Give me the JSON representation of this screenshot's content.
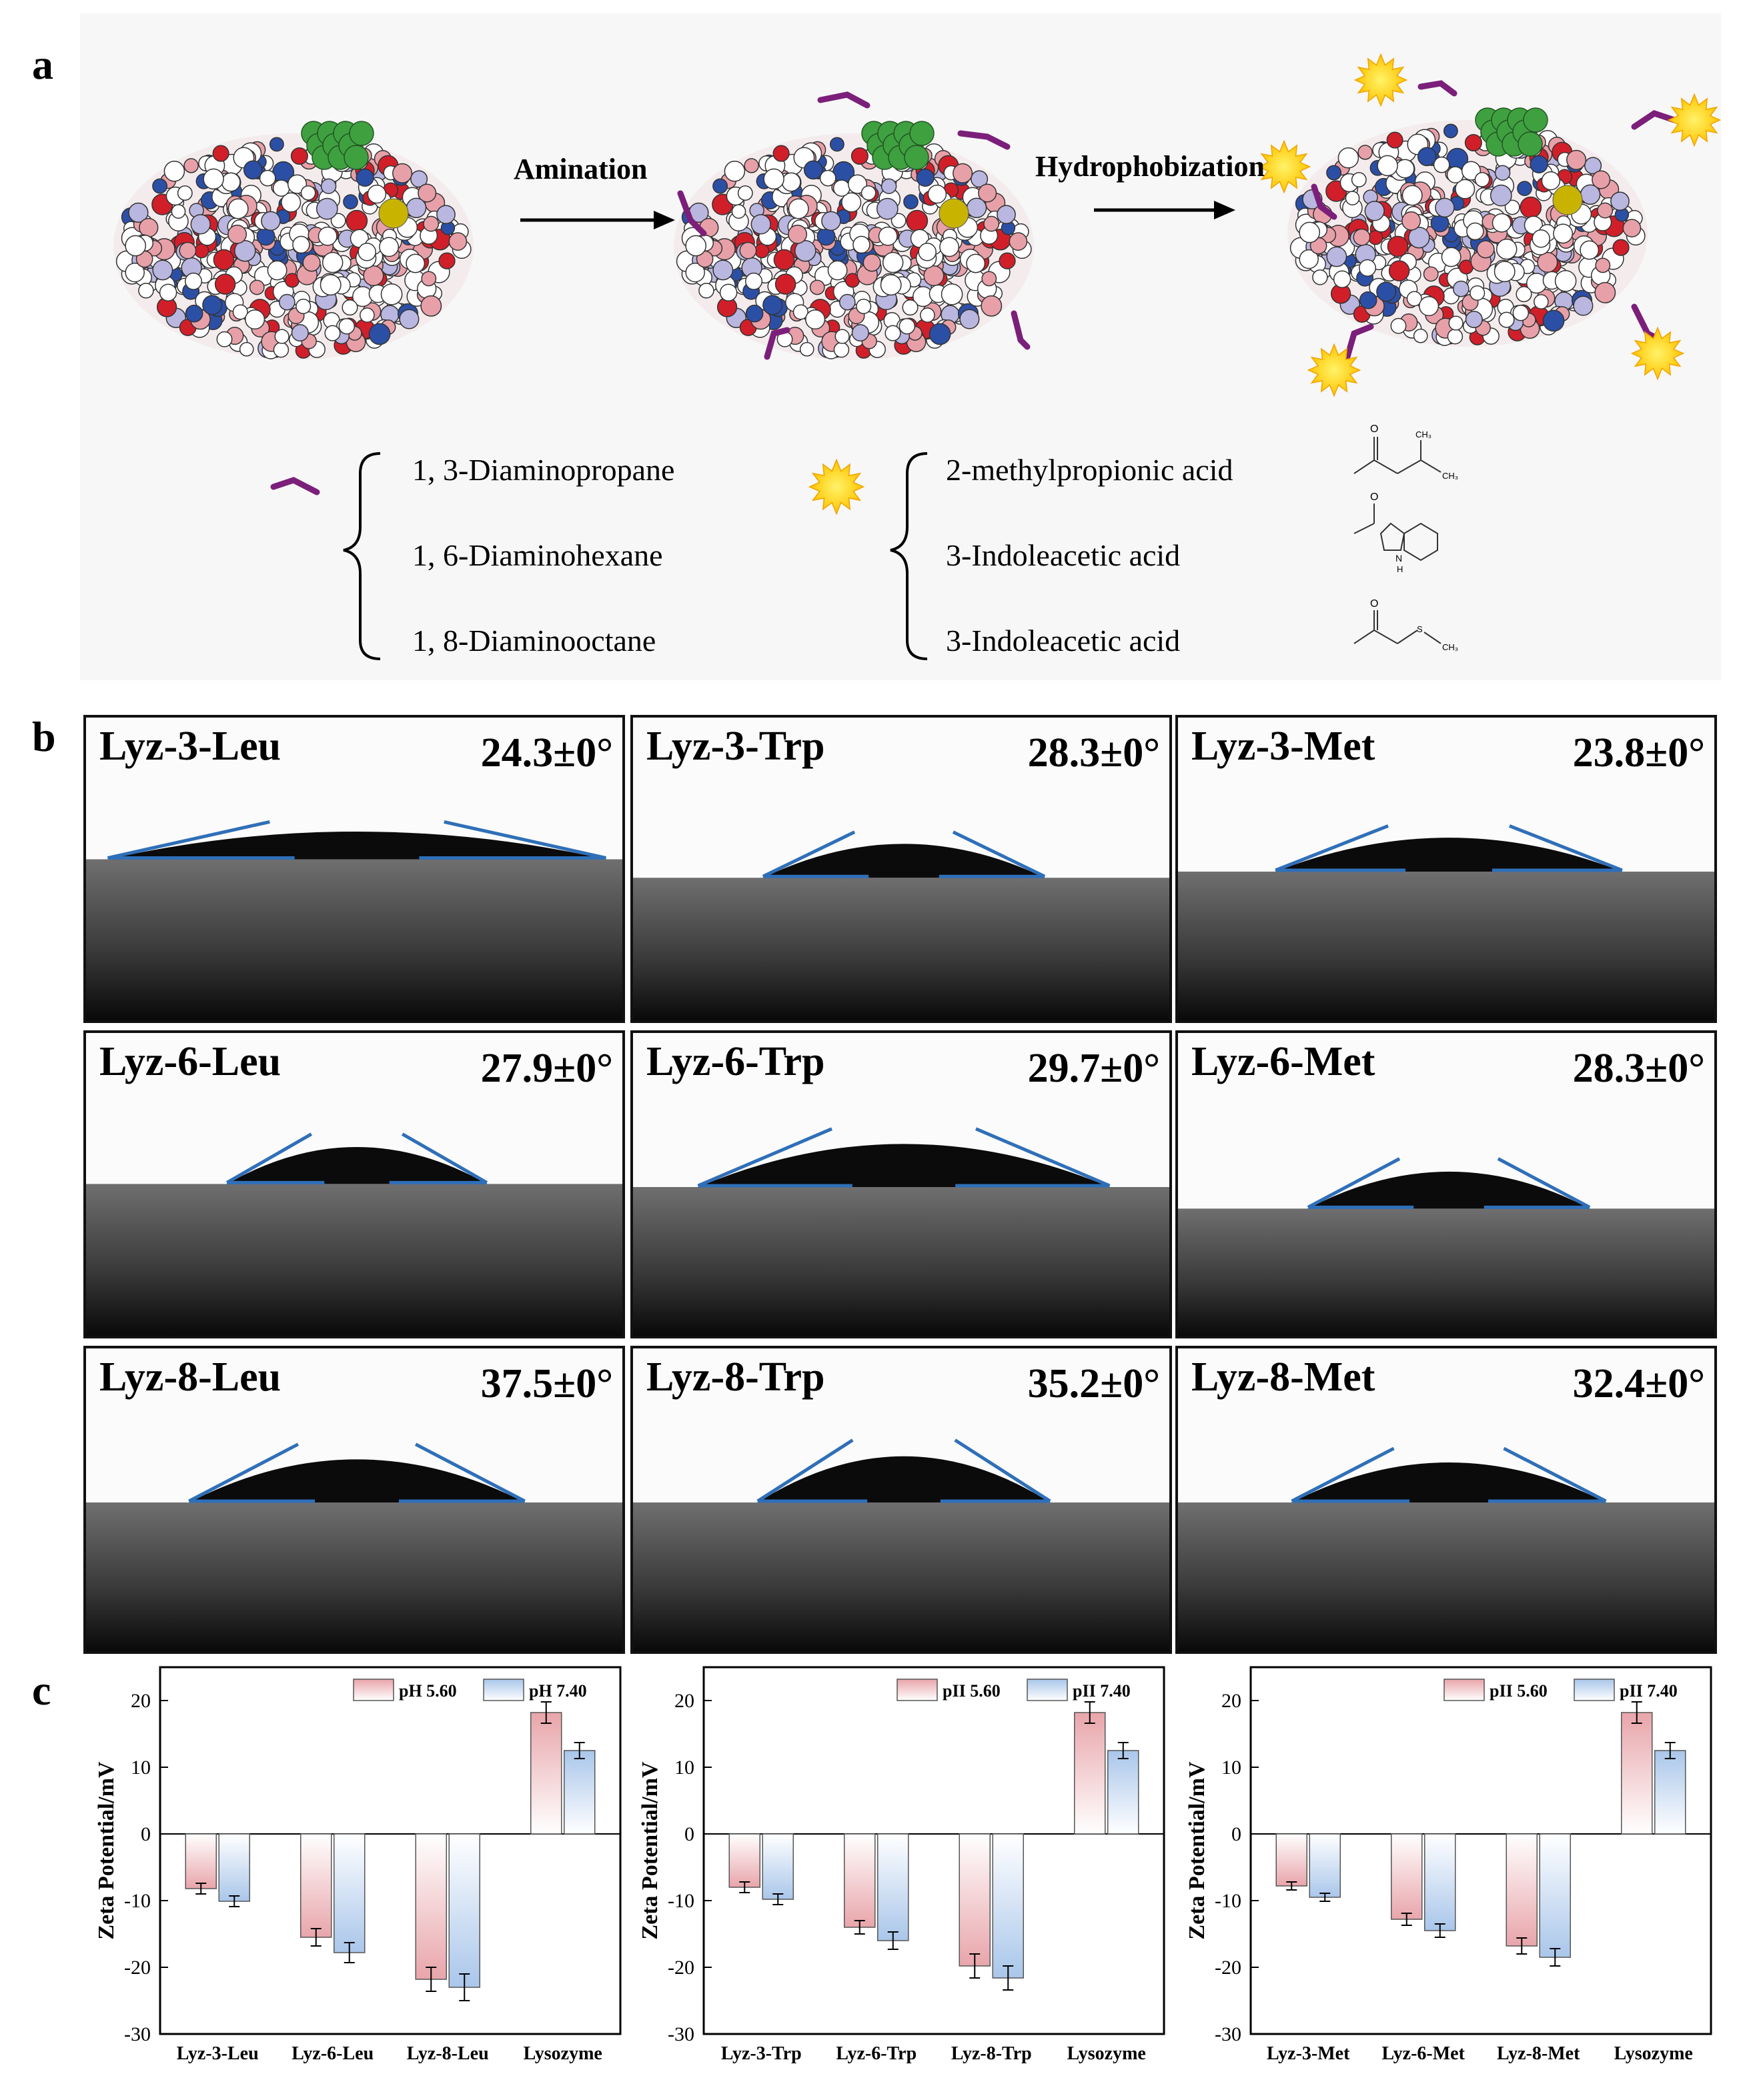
{
  "panel_labels": {
    "a": "a",
    "b": "b",
    "c": "c"
  },
  "scheme": {
    "step1": "Amination",
    "step2": "Hydrophobization",
    "linker_legend": [
      "1, 3-Diaminopropane",
      "1, 6-Diaminohexane",
      "1, 8-Diaminooctane"
    ],
    "acid_legend": [
      "2-methylpropionic acid",
      "3-Indoleacetic acid",
      "3-Indoleacetic acid"
    ],
    "structure_atoms": {
      "ch3_top": "CH₃",
      "ch3_bottom": "CH₃",
      "nh": "H",
      "n": "N",
      "s": "S",
      "o": "O"
    },
    "colors": {
      "linker": "#7b1f7a",
      "sun": "#ffd21f",
      "sun_edge": "#f2a600",
      "blue_atom": "#2c4fa6",
      "red_atom": "#d11f2a",
      "pink_atom": "#e8a0a8",
      "green_atom": "#3fa040",
      "yellow_atom": "#c8b400"
    }
  },
  "contact_angles": [
    {
      "sample": "Lyz-3-Leu",
      "angle": "24.3±0°"
    },
    {
      "sample": "Lyz-3-Trp",
      "angle": "28.3±0°"
    },
    {
      "sample": "Lyz-3-Met",
      "angle": "23.8±0°"
    },
    {
      "sample": "Lyz-6-Leu",
      "angle": "27.9±0°"
    },
    {
      "sample": "Lyz-6-Trp",
      "angle": "29.7±0°"
    },
    {
      "sample": "Lyz-6-Met",
      "angle": "28.3±0°"
    },
    {
      "sample": "Lyz-8-Leu",
      "angle": "37.5±0°"
    },
    {
      "sample": "Lyz-8-Trp",
      "angle": "35.2±0°"
    },
    {
      "sample": "Lyz-8-Met",
      "angle": "32.4±0°"
    }
  ],
  "chart_data": [
    {
      "type": "bar",
      "ylabel": "Zeta Potential/mV",
      "ylim": [
        -30,
        25
      ],
      "yticks": [
        -30,
        -20,
        -10,
        0,
        10,
        20
      ],
      "categories": [
        "Lyz-3-Leu",
        "Lyz-6-Leu",
        "Lyz-8-Leu",
        "Lysozyme"
      ],
      "legend_position": "top-right",
      "series": [
        {
          "name": "pH 5.60",
          "values": [
            -8.2,
            -15.5,
            -21.8,
            18.2
          ],
          "errors": [
            0.8,
            1.3,
            1.8,
            1.6
          ],
          "color": "#e8a5aa"
        },
        {
          "name": "pH 7.40",
          "values": [
            -10.1,
            -17.8,
            -23.0,
            12.5
          ],
          "errors": [
            0.8,
            1.5,
            2.0,
            1.2
          ],
          "color": "#a9c6ea"
        }
      ]
    },
    {
      "type": "bar",
      "ylabel": "Zeta Potential/mV",
      "ylim": [
        -30,
        25
      ],
      "yticks": [
        -30,
        -20,
        -10,
        0,
        10,
        20
      ],
      "categories": [
        "Lyz-3-Trp",
        "Lyz-6-Trp",
        "Lyz-8-Trp",
        "Lysozyme"
      ],
      "legend_position": "top-right",
      "series": [
        {
          "name": "pII 5.60",
          "values": [
            -8.0,
            -14.0,
            -19.8,
            18.2
          ],
          "errors": [
            0.8,
            1.0,
            1.8,
            1.6
          ],
          "color": "#e8a5aa"
        },
        {
          "name": "pII 7.40",
          "values": [
            -9.8,
            -16.0,
            -21.6,
            12.5
          ],
          "errors": [
            0.8,
            1.3,
            1.8,
            1.2
          ],
          "color": "#a9c6ea"
        }
      ]
    },
    {
      "type": "bar",
      "ylabel": "Zeta Potential/mV",
      "ylim": [
        -30,
        25
      ],
      "yticks": [
        -30,
        -20,
        -10,
        0,
        10,
        20
      ],
      "categories": [
        "Lyz-3-Met",
        "Lyz-6-Met",
        "Lyz-8-Met",
        "Lysozyme"
      ],
      "legend_position": "top-right",
      "series": [
        {
          "name": "pII 5.60",
          "values": [
            -7.8,
            -12.8,
            -16.8,
            18.2
          ],
          "errors": [
            0.6,
            0.9,
            1.2,
            1.6
          ],
          "color": "#e8a5aa"
        },
        {
          "name": "pII 7.40",
          "values": [
            -9.5,
            -14.5,
            -18.5,
            12.5
          ],
          "errors": [
            0.6,
            1.0,
            1.3,
            1.2
          ],
          "color": "#a9c6ea"
        }
      ]
    }
  ]
}
